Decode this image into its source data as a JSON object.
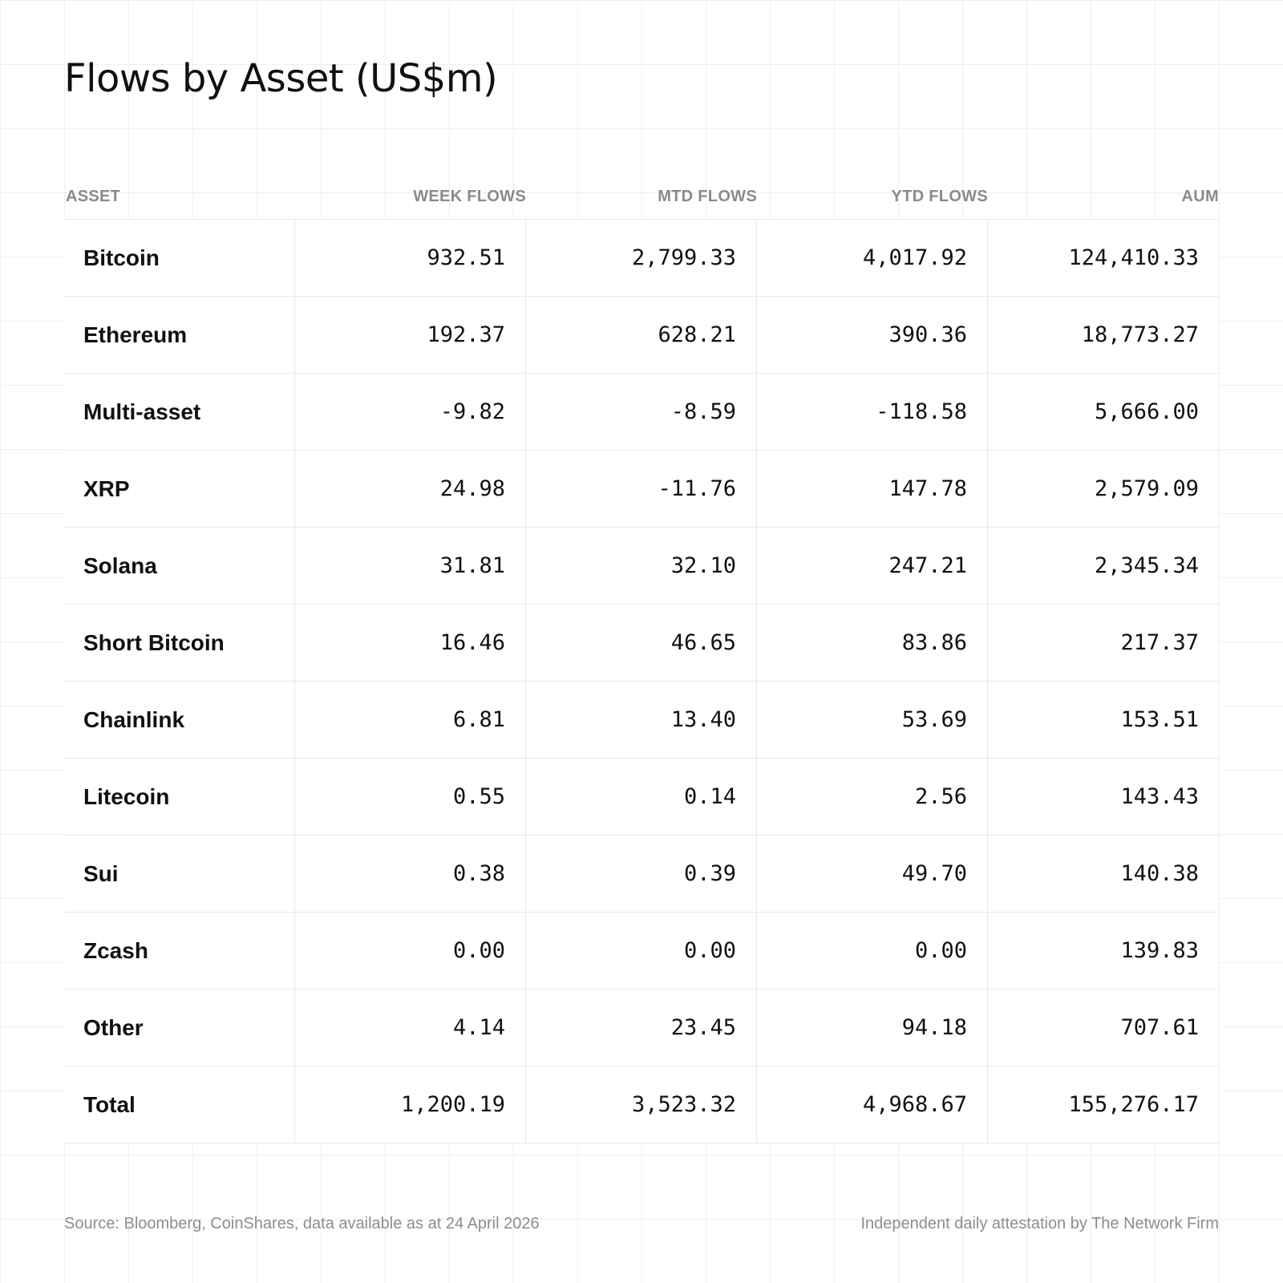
{
  "chart_data": {
    "type": "table",
    "title": "Flows by Asset (US$m)",
    "columns": [
      "ASSET",
      "WEEK FLOWS",
      "MTD FLOWS",
      "YTD FLOWS",
      "AUM"
    ],
    "rows": [
      {
        "asset": "Bitcoin",
        "week": "932.51",
        "mtd": "2,799.33",
        "ytd": "4,017.92",
        "aum": "124,410.33"
      },
      {
        "asset": "Ethereum",
        "week": "192.37",
        "mtd": "628.21",
        "ytd": "390.36",
        "aum": "18,773.27"
      },
      {
        "asset": "Multi-asset",
        "week": "-9.82",
        "mtd": "-8.59",
        "ytd": "-118.58",
        "aum": "5,666.00"
      },
      {
        "asset": "XRP",
        "week": "24.98",
        "mtd": "-11.76",
        "ytd": "147.78",
        "aum": "2,579.09"
      },
      {
        "asset": "Solana",
        "week": "31.81",
        "mtd": "32.10",
        "ytd": "247.21",
        "aum": "2,345.34"
      },
      {
        "asset": "Short Bitcoin",
        "week": "16.46",
        "mtd": "46.65",
        "ytd": "83.86",
        "aum": "217.37"
      },
      {
        "asset": "Chainlink",
        "week": "6.81",
        "mtd": "13.40",
        "ytd": "53.69",
        "aum": "153.51"
      },
      {
        "asset": "Litecoin",
        "week": "0.55",
        "mtd": "0.14",
        "ytd": "2.56",
        "aum": "143.43"
      },
      {
        "asset": "Sui",
        "week": "0.38",
        "mtd": "0.39",
        "ytd": "49.70",
        "aum": "140.38"
      },
      {
        "asset": "Zcash",
        "week": "0.00",
        "mtd": "0.00",
        "ytd": "0.00",
        "aum": "139.83"
      },
      {
        "asset": "Other",
        "week": "4.14",
        "mtd": "23.45",
        "ytd": "94.18",
        "aum": "707.61"
      },
      {
        "asset": "Total",
        "week": "1,200.19",
        "mtd": "3,523.32",
        "ytd": "4,968.67",
        "aum": "155,276.17"
      }
    ]
  },
  "footer": {
    "source": "Source: Bloomberg, CoinShares, data available as at 24 April 2026",
    "attestation": "Independent daily attestation by The Network Firm"
  }
}
